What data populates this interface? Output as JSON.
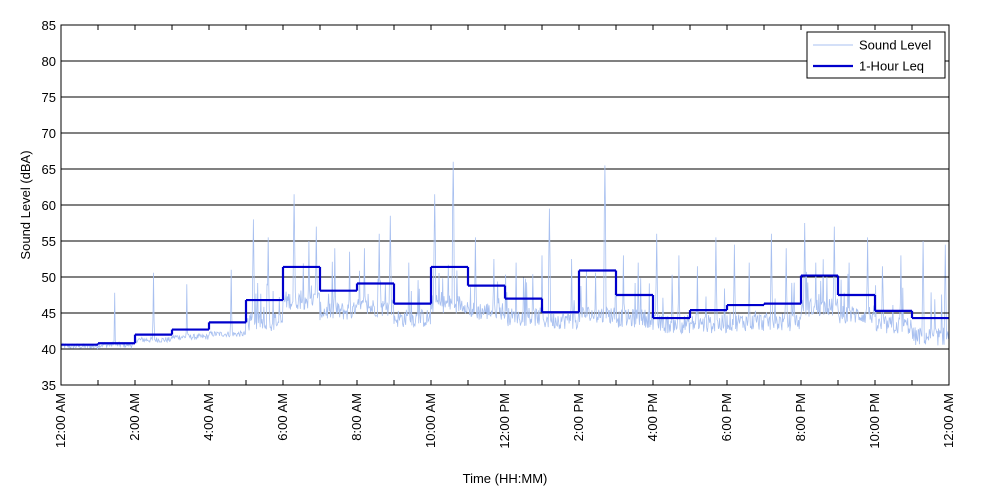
{
  "chart_data": {
    "type": "line",
    "title": "",
    "xlabel": "Time (HH:MM)",
    "ylabel": "Sound Level (dBA)",
    "ylim": [
      35,
      85
    ],
    "yticks": [
      35,
      40,
      45,
      50,
      55,
      60,
      65,
      70,
      75,
      80,
      85
    ],
    "xlim_hours": [
      0,
      24
    ],
    "x_tick_labels": [
      {
        "hour": 0,
        "label": "12:00 AM"
      },
      {
        "hour": 2,
        "label": "2:00 AM"
      },
      {
        "hour": 4,
        "label": "4:00 AM"
      },
      {
        "hour": 6,
        "label": "6:00 AM"
      },
      {
        "hour": 8,
        "label": "8:00 AM"
      },
      {
        "hour": 10,
        "label": "10:00 AM"
      },
      {
        "hour": 12,
        "label": "12:00 PM"
      },
      {
        "hour": 14,
        "label": "2:00 PM"
      },
      {
        "hour": 16,
        "label": "4:00 PM"
      },
      {
        "hour": 18,
        "label": "6:00 PM"
      },
      {
        "hour": 20,
        "label": "8:00 PM"
      },
      {
        "hour": 22,
        "label": "10:00 PM"
      },
      {
        "hour": 24,
        "label": "12:00 AM"
      }
    ],
    "grid": "horizontal",
    "legend_position": "top-right",
    "series": [
      {
        "name": "Sound Level",
        "color": "#a8c0f0",
        "style": "thin-line",
        "base_per_hour": [
          40.3,
          40.5,
          41.2,
          41.6,
          42.0,
          43.5,
          46.5,
          45.0,
          45.5,
          44.0,
          46.0,
          45.0,
          44.2,
          43.8,
          44.5,
          44.0,
          43.2,
          43.2,
          43.5,
          43.5,
          45.5,
          44.5,
          43.0,
          41.5
        ],
        "peaks": [
          {
            "hour": 1.45,
            "value": 47.8
          },
          {
            "hour": 2.5,
            "value": 50.6
          },
          {
            "hour": 3.4,
            "value": 49.0
          },
          {
            "hour": 4.6,
            "value": 51.0
          },
          {
            "hour": 5.2,
            "value": 58.0
          },
          {
            "hour": 5.6,
            "value": 55.5
          },
          {
            "hour": 6.3,
            "value": 61.5
          },
          {
            "hour": 6.7,
            "value": 55.0
          },
          {
            "hour": 6.9,
            "value": 57.0
          },
          {
            "hour": 7.4,
            "value": 54.0
          },
          {
            "hour": 7.8,
            "value": 53.5
          },
          {
            "hour": 8.2,
            "value": 54.0
          },
          {
            "hour": 8.6,
            "value": 56.0
          },
          {
            "hour": 8.9,
            "value": 58.5
          },
          {
            "hour": 9.4,
            "value": 52.0
          },
          {
            "hour": 10.1,
            "value": 61.5
          },
          {
            "hour": 10.6,
            "value": 66.0
          },
          {
            "hour": 11.2,
            "value": 55.5
          },
          {
            "hour": 11.7,
            "value": 52.5
          },
          {
            "hour": 12.3,
            "value": 52.0
          },
          {
            "hour": 13.0,
            "value": 53.0
          },
          {
            "hour": 13.2,
            "value": 59.5
          },
          {
            "hour": 13.8,
            "value": 52.5
          },
          {
            "hour": 14.2,
            "value": 51.0
          },
          {
            "hour": 14.7,
            "value": 65.5
          },
          {
            "hour": 15.2,
            "value": 53.0
          },
          {
            "hour": 15.6,
            "value": 52.0
          },
          {
            "hour": 16.1,
            "value": 56.0
          },
          {
            "hour": 16.7,
            "value": 53.0
          },
          {
            "hour": 17.2,
            "value": 51.5
          },
          {
            "hour": 17.7,
            "value": 55.5
          },
          {
            "hour": 18.2,
            "value": 54.5
          },
          {
            "hour": 18.6,
            "value": 52.0
          },
          {
            "hour": 19.2,
            "value": 56.0
          },
          {
            "hour": 19.6,
            "value": 54.0
          },
          {
            "hour": 20.1,
            "value": 57.5
          },
          {
            "hour": 20.4,
            "value": 52.0
          },
          {
            "hour": 20.9,
            "value": 57.0
          },
          {
            "hour": 21.3,
            "value": 52.0
          },
          {
            "hour": 21.8,
            "value": 55.5
          },
          {
            "hour": 22.2,
            "value": 51.5
          },
          {
            "hour": 22.7,
            "value": 53.0
          },
          {
            "hour": 23.3,
            "value": 55.0
          },
          {
            "hour": 23.9,
            "value": 54.5
          }
        ]
      },
      {
        "name": "1-Hour Leq",
        "color": "#0000cc",
        "style": "step",
        "hours": [
          0,
          1,
          2,
          3,
          4,
          5,
          6,
          7,
          8,
          9,
          10,
          11,
          12,
          13,
          14,
          15,
          16,
          17,
          18,
          19,
          20,
          21,
          22,
          23
        ],
        "values": [
          40.6,
          40.8,
          42.0,
          42.7,
          43.7,
          46.8,
          51.4,
          48.1,
          49.1,
          46.3,
          51.4,
          48.8,
          47.0,
          45.1,
          50.9,
          47.5,
          44.3,
          45.4,
          46.1,
          46.3,
          50.2,
          47.5,
          45.3,
          44.3
        ]
      }
    ]
  }
}
